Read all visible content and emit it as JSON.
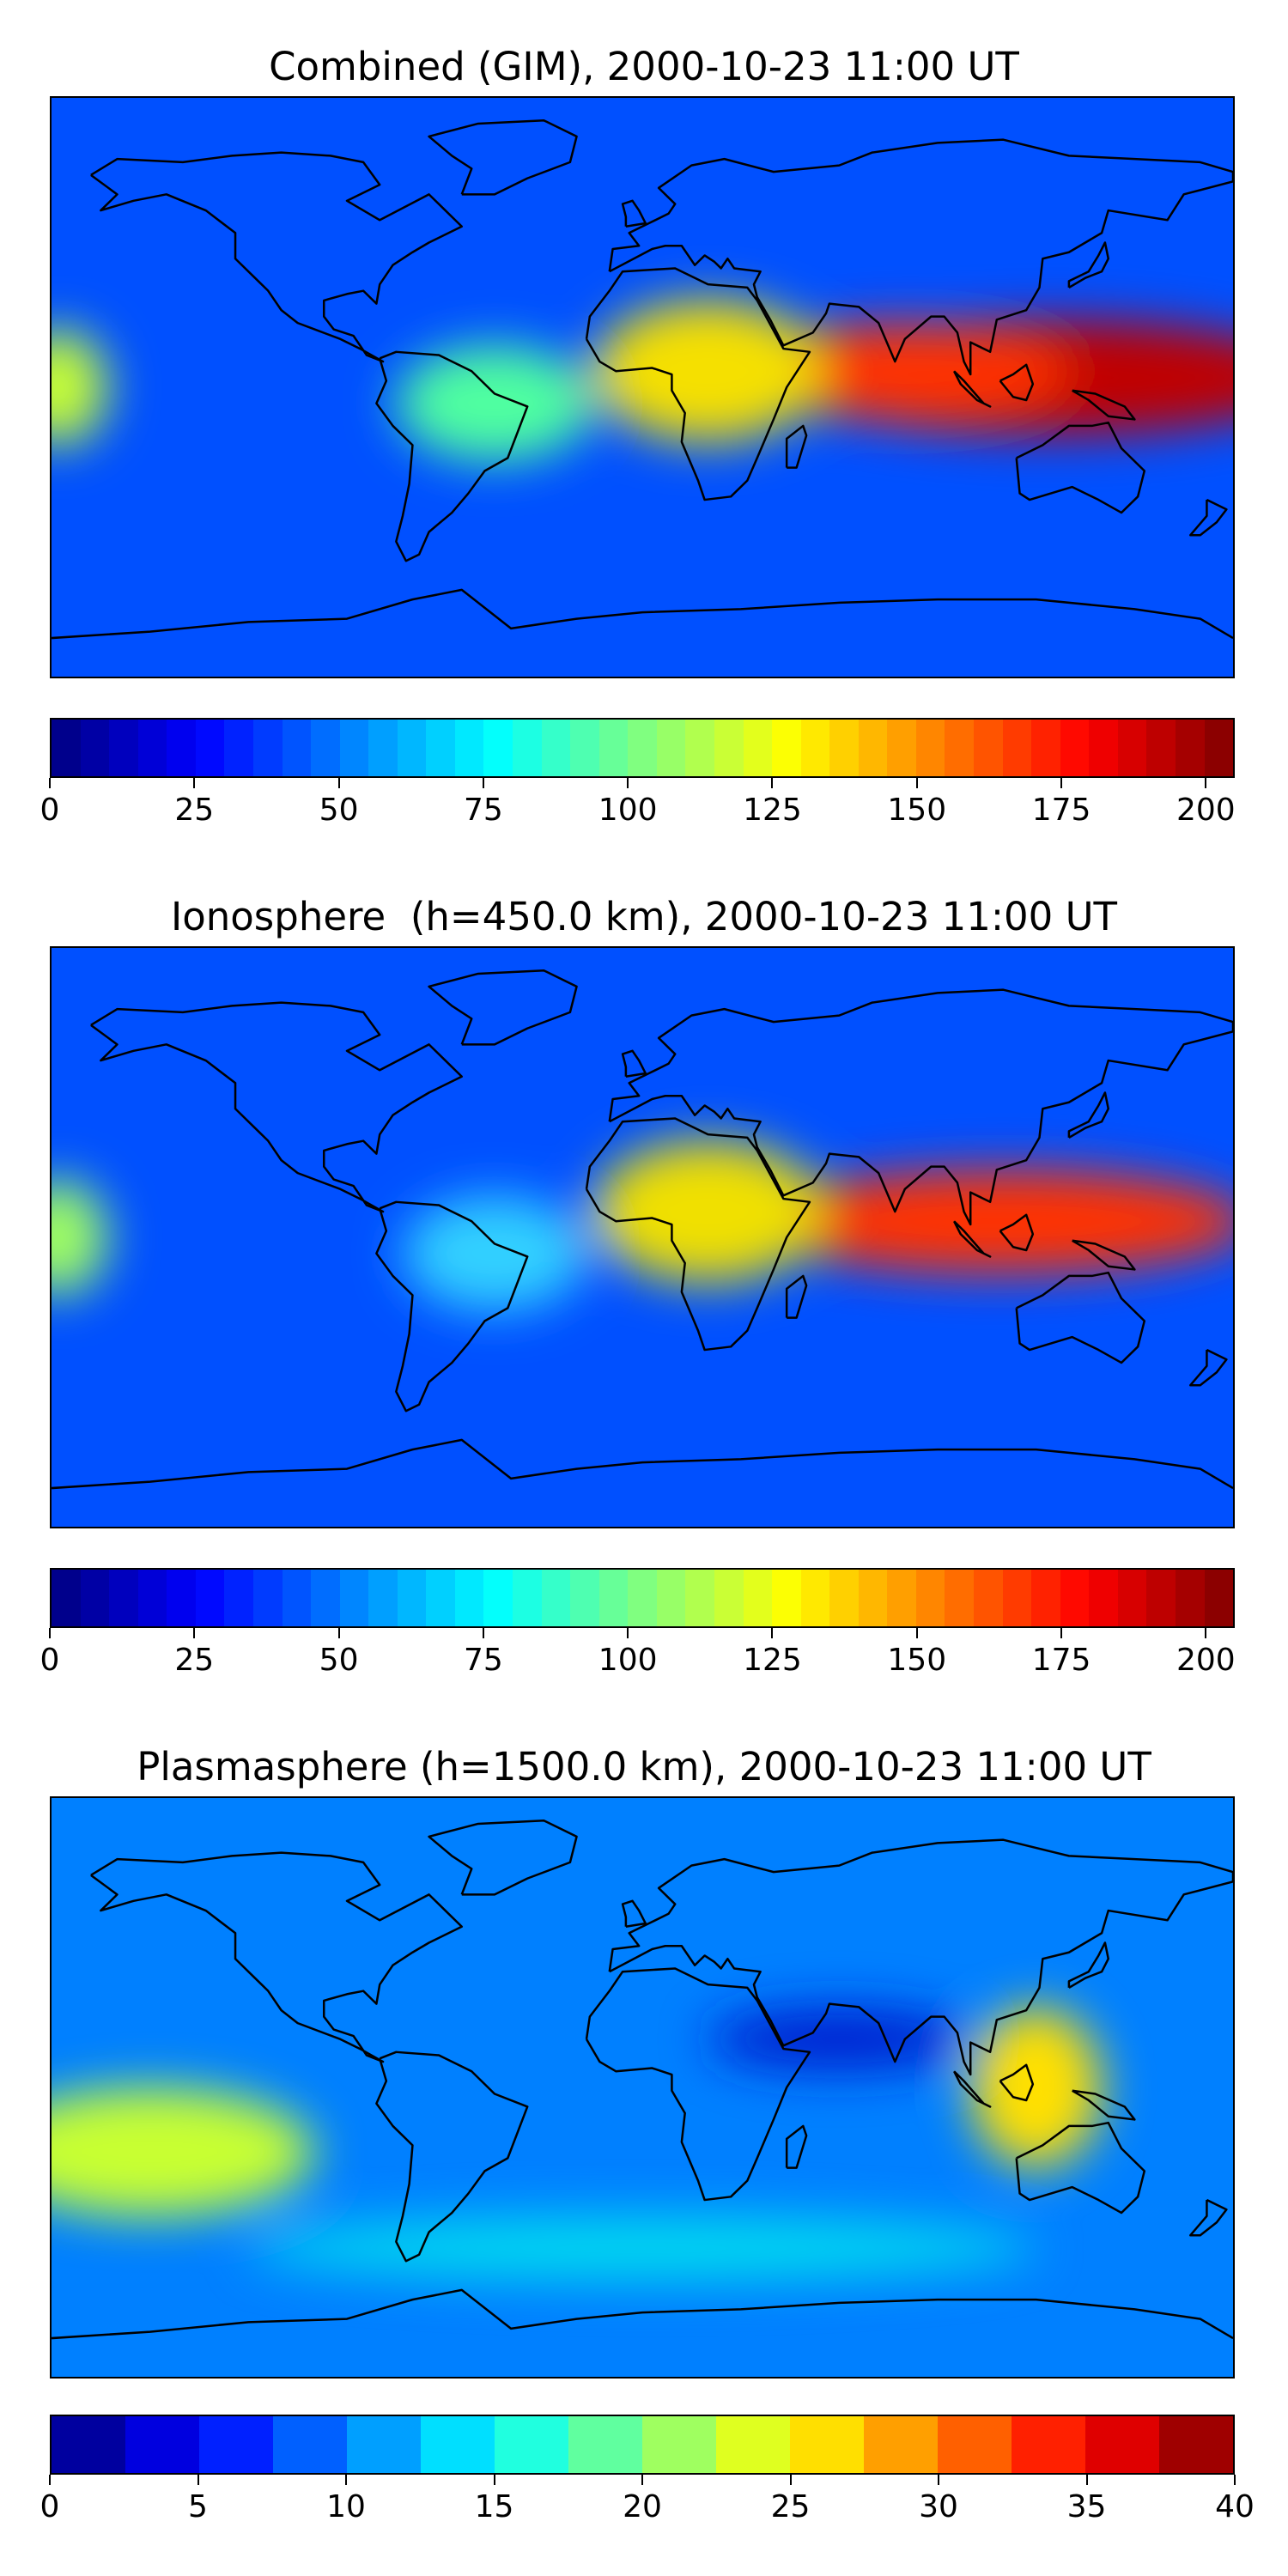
{
  "panels": [
    {
      "title": "Combined (GIM), 2000-10-23 11:00 UT",
      "colorbar": {
        "min": 0,
        "max": 205,
        "levels": 41,
        "ticks": [
          "0",
          "25",
          "50",
          "75",
          "100",
          "125",
          "150",
          "175",
          "200"
        ],
        "tick_values": [
          0,
          25,
          50,
          75,
          100,
          125,
          150,
          175,
          200
        ]
      },
      "blobs": [
        {
          "lon": 125,
          "lat": 3,
          "rx": 80,
          "ry": 18,
          "color": "#c00000"
        },
        {
          "lon": 80,
          "lat": 5,
          "rx": 50,
          "ry": 15,
          "color": "#ff3000"
        },
        {
          "lon": 20,
          "lat": 5,
          "rx": 35,
          "ry": 22,
          "color": "#f5e000"
        },
        {
          "lon": -45,
          "lat": -5,
          "rx": 30,
          "ry": 18,
          "color": "#50ffa0"
        },
        {
          "lon": -178,
          "lat": 0,
          "rx": 15,
          "ry": 18,
          "color": "#c8ff30"
        }
      ]
    },
    {
      "title": "Ionosphere  (h=450.0 km), 2000-10-23 11:00 UT",
      "colorbar": {
        "min": 0,
        "max": 205,
        "levels": 41,
        "ticks": [
          "0",
          "25",
          "50",
          "75",
          "100",
          "125",
          "150",
          "175",
          "200"
        ],
        "tick_values": [
          0,
          25,
          50,
          75,
          100,
          125,
          150,
          175,
          200
        ]
      },
      "blobs": [
        {
          "lon": 110,
          "lat": 5,
          "rx": 75,
          "ry": 16,
          "color": "#ff3000"
        },
        {
          "lon": 20,
          "lat": 8,
          "rx": 35,
          "ry": 22,
          "color": "#f0e000"
        },
        {
          "lon": -45,
          "lat": -5,
          "rx": 28,
          "ry": 18,
          "color": "#30d0ff"
        },
        {
          "lon": -178,
          "lat": 0,
          "rx": 15,
          "ry": 18,
          "color": "#a0ff60"
        }
      ]
    },
    {
      "title": "Plasmasphere (h=1500.0 km), 2000-10-23 11:00 UT",
      "colorbar": {
        "min": 0,
        "max": 40,
        "levels": 16,
        "ticks": [
          "0",
          "5",
          "10",
          "15",
          "20",
          "25",
          "30",
          "35",
          "40"
        ],
        "tick_values": [
          0,
          5,
          10,
          15,
          20,
          25,
          30,
          35,
          40
        ]
      },
      "blobs": [
        {
          "lon": 120,
          "lat": 0,
          "rx": 20,
          "ry": 25,
          "color": "#ffe000"
        },
        {
          "lon": -150,
          "lat": -20,
          "rx": 50,
          "ry": 20,
          "color": "#c8ff30"
        },
        {
          "lon": 60,
          "lat": 15,
          "rx": 40,
          "ry": 10,
          "color": "#0020d0"
        },
        {
          "lon": 0,
          "lat": -50,
          "rx": 120,
          "ry": 10,
          "color": "#00d8f0"
        }
      ]
    }
  ]
}
